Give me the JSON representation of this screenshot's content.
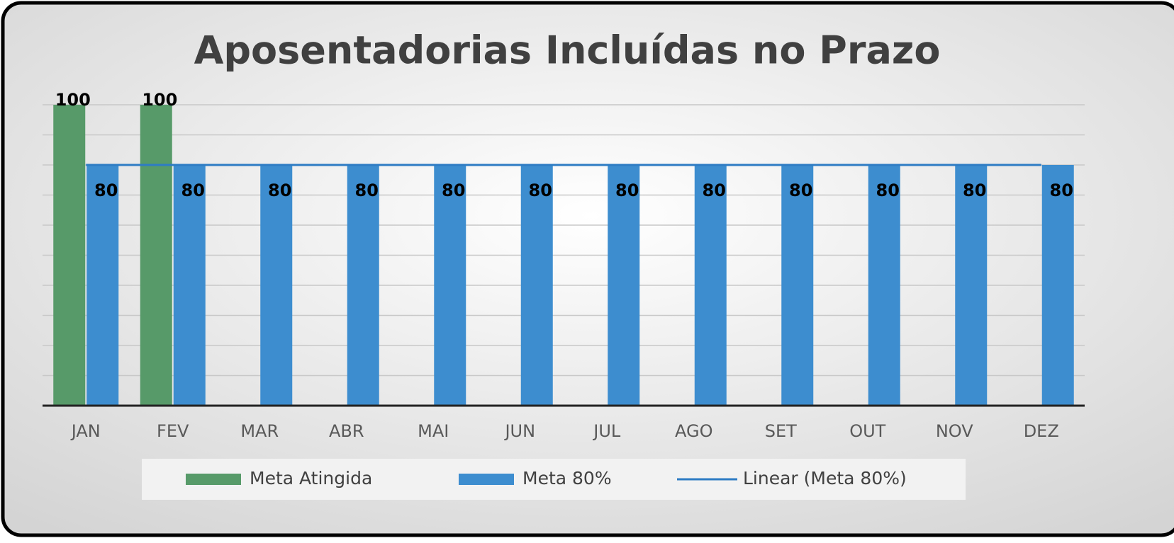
{
  "chart_data": {
    "type": "bar",
    "title": "Aposentadorias Incluídas no Prazo",
    "categories": [
      "JAN",
      "FEV",
      "MAR",
      "ABR",
      "MAI",
      "JUN",
      "JUL",
      "AGO",
      "SET",
      "OUT",
      "NOV",
      "DEZ"
    ],
    "series": [
      {
        "name": "Meta Atingida",
        "color": "#579a69",
        "values": [
          100,
          100,
          null,
          null,
          null,
          null,
          null,
          null,
          null,
          null,
          null,
          null
        ]
      },
      {
        "name": "Meta 80%",
        "color": "#3d8dcf",
        "values": [
          80,
          80,
          80,
          80,
          80,
          80,
          80,
          80,
          80,
          80,
          80,
          80
        ]
      },
      {
        "name": "Linear (Meta 80%)",
        "color": "#2e7cc4",
        "type": "line",
        "values": [
          80,
          80,
          80,
          80,
          80,
          80,
          80,
          80,
          80,
          80,
          80,
          80
        ]
      }
    ],
    "ylim": [
      0,
      100
    ],
    "yticks": [
      0,
      10,
      20,
      30,
      40,
      50,
      60,
      70,
      80,
      90,
      100
    ],
    "grid": true,
    "legend": "bottom"
  }
}
